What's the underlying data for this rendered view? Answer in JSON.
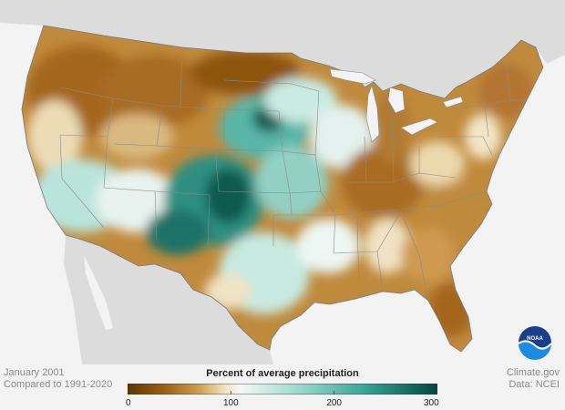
{
  "footer_left": {
    "line1": "January 2001",
    "line2": "Compared to 1991-2020"
  },
  "footer_right": {
    "line1": "Climate.gov",
    "line2": "Data: NCEI"
  },
  "legend": {
    "title": "Percent of average precipitation",
    "ticks": [
      {
        "value": 0,
        "label": "0"
      },
      {
        "value": 100,
        "label": "100"
      },
      {
        "value": 200,
        "label": "200"
      },
      {
        "value": 300,
        "label": "300"
      }
    ],
    "range": [
      0,
      300
    ],
    "color_stops": [
      {
        "value": 0,
        "color": "#5c3503"
      },
      {
        "value": 35,
        "color": "#9a5f14"
      },
      {
        "value": 70,
        "color": "#cfa055"
      },
      {
        "value": 95,
        "color": "#f2e6c6"
      },
      {
        "value": 110,
        "color": "#f4f7f4"
      },
      {
        "value": 160,
        "color": "#a6ddd2"
      },
      {
        "value": 230,
        "color": "#3aa494"
      },
      {
        "value": 300,
        "color": "#00473f"
      }
    ]
  },
  "logo": {
    "text": "NOAA"
  },
  "colors": {
    "background": "#f3f3f3",
    "land_outside": "#dcdcdc",
    "water": "#f3f3f3",
    "state_border": "#8a8a8a"
  }
}
